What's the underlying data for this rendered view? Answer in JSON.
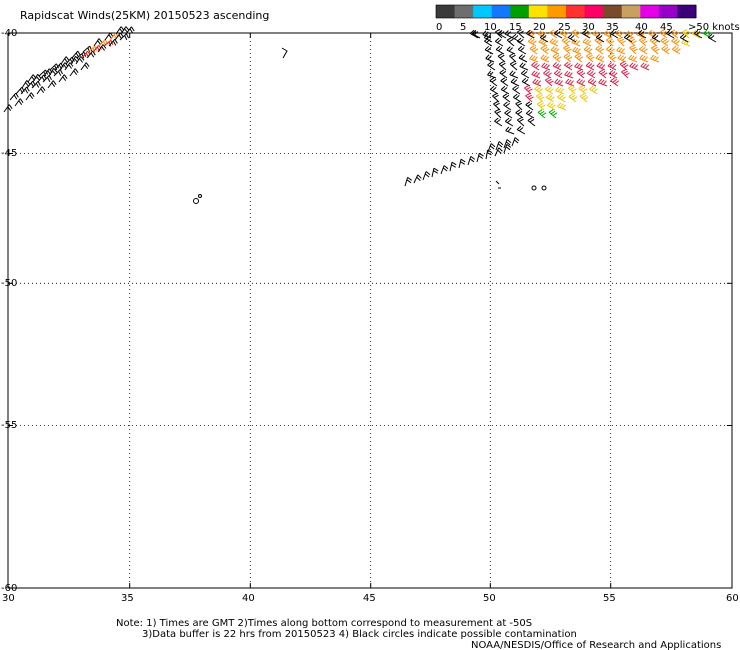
{
  "title": "Rapidscat Winds(25KM) 20150523 ascending",
  "legend": {
    "labels": [
      "0",
      "5",
      "10",
      "15",
      "20",
      "25",
      "30",
      "35",
      "40",
      "45",
      ">50 knots"
    ],
    "colors": [
      "#3a3a3a",
      "#6e6e6e",
      "#00c8ff",
      "#1478ff",
      "#00a000",
      "#ffe100",
      "#ff9900",
      "#ff3232",
      "#ff0064",
      "#7a4a2a",
      "#c8a060",
      "#e600e6",
      "#9600c8",
      "#3c0078"
    ]
  },
  "axes": {
    "x_ticks": [
      "30",
      "35",
      "40",
      "45",
      "50",
      "55",
      "60"
    ],
    "y_ticks": [
      "-40",
      "-45",
      "-50",
      "-55",
      "-60"
    ]
  },
  "wind_colors": {
    "black": "#000000",
    "red": "#ff0000",
    "orange": "#ff8c00",
    "yellow": "#f0c800",
    "green": "#00b400",
    "blue": "#0000ff",
    "pink": "#e0204a"
  },
  "notes": {
    "line1": "Note: 1) Times are GMT 2)Times along bottom correspond to measurement at -50S",
    "line2": "3)Data buffer is 22 hrs from 20150523 4) Black circles indicate possible contamination",
    "line3": "NOAA/NESDIS/Office of Research and Applications"
  }
}
